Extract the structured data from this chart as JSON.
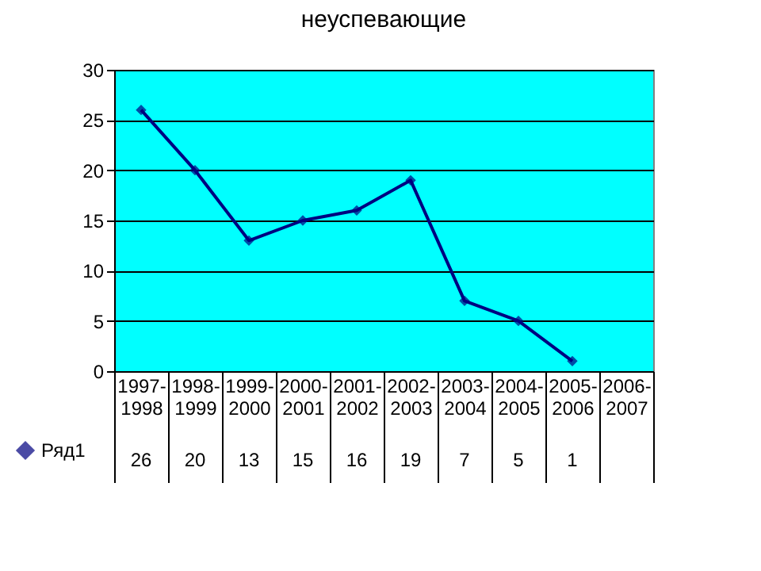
{
  "chart_data": {
    "type": "line",
    "title": "неуспевающие",
    "categories": [
      "1997-1998",
      "1998-1999",
      "1999-2000",
      "2000-2001",
      "2001-2002",
      "2002-2003",
      "2003-2004",
      "2004-2005",
      "2005-2006",
      "2006-2007"
    ],
    "series": [
      {
        "name": "Ряд1",
        "color": "#000080",
        "values": [
          26,
          20,
          13,
          15,
          16,
          19,
          7,
          5,
          1,
          null
        ]
      }
    ],
    "ylim": [
      0,
      30
    ],
    "yticks": [
      0,
      5,
      10,
      15,
      20,
      25,
      30
    ],
    "grid": "y",
    "marker": "diamond",
    "legend": "bottom left",
    "data_labels": true
  }
}
